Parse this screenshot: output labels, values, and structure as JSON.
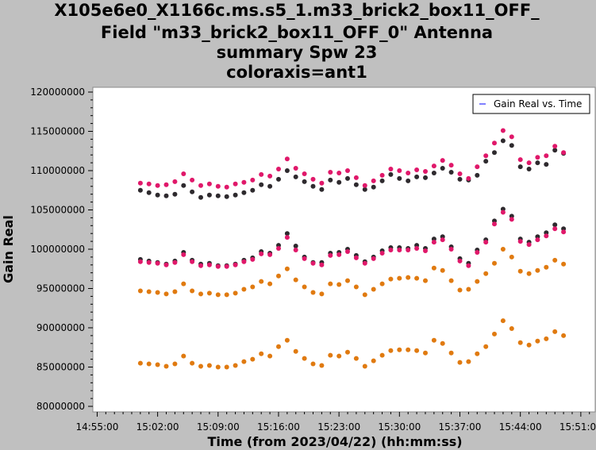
{
  "title_lines": [
    "X105e6e0_X1166c.ms.s5_1.m33_brick2_box11_OFF_",
    "Field \"m33_brick2_box11_OFF_0\" Antenna",
    "summary Spw 23",
    "coloraxis=ant1"
  ],
  "colors": {
    "background": "#c0c0c0",
    "plot_bg": "#ffffff",
    "legend_line": "#0000ff",
    "series": [
      "#2e2a2e",
      "#e0186a",
      "#e07a10"
    ]
  },
  "chart_data": {
    "type": "scatter",
    "xlabel": "Time (from 2023/04/22) (hh:mm:ss)",
    "ylabel": "Gain Real",
    "x_ticks": [
      "14:55:00",
      "15:02:00",
      "15:09:00",
      "15:16:00",
      "15:23:00",
      "15:30:00",
      "15:37:00",
      "15:44:00",
      "15:51:00"
    ],
    "x_range": [
      "14:54:30",
      "15:52:40"
    ],
    "y_ticks": [
      "80000000",
      "85000000",
      "90000000",
      "95000000",
      "100000000",
      "105000000",
      "110000000",
      "115000000",
      "120000000"
    ],
    "y_range": [
      80000000,
      120000000
    ],
    "legend": {
      "label": "Gain Real vs. Time",
      "position": "top-right"
    },
    "grid": false,
    "series": [
      {
        "color": "#2e2a2e",
        "group": "upper",
        "x": [
          "15:00:00",
          "15:01:00",
          "15:02:00",
          "15:03:00",
          "15:04:00",
          "15:05:00",
          "15:06:00",
          "15:07:00",
          "15:08:00",
          "15:09:00",
          "15:10:00",
          "15:11:00",
          "15:12:00",
          "15:13:00",
          "15:14:00",
          "15:15:00",
          "15:16:00",
          "15:17:00",
          "15:18:00",
          "15:19:00",
          "15:20:00",
          "15:21:00",
          "15:22:00",
          "15:23:00",
          "15:24:00",
          "15:25:00",
          "15:26:00",
          "15:27:00",
          "15:28:00",
          "15:29:00",
          "15:30:00",
          "15:31:00",
          "15:32:00",
          "15:33:00",
          "15:34:00",
          "15:35:00",
          "15:36:00",
          "15:37:00",
          "15:38:00",
          "15:39:00",
          "15:40:00",
          "15:41:00",
          "15:42:00",
          "15:43:00",
          "15:44:00",
          "15:45:00",
          "15:46:00",
          "15:47:00",
          "15:48:00",
          "15:49:00"
        ],
        "y": [
          107.5,
          107.2,
          106.9,
          106.8,
          107.0,
          108.1,
          107.3,
          106.6,
          106.9,
          106.8,
          106.7,
          106.9,
          107.2,
          107.5,
          108.2,
          108.0,
          108.9,
          110.0,
          109.2,
          108.6,
          108.0,
          107.6,
          108.8,
          108.5,
          109.0,
          108.2,
          107.6,
          107.9,
          108.7,
          109.5,
          109.0,
          108.7,
          109.2,
          109.1,
          109.7,
          110.3,
          109.8,
          108.9,
          108.8,
          109.4,
          111.2,
          112.3,
          113.8,
          113.2,
          110.5,
          110.2,
          111.0,
          110.8,
          112.6,
          112.2
        ]
      },
      {
        "color": "#e0186a",
        "group": "upper",
        "x": [
          "15:00:00",
          "15:01:00",
          "15:02:00",
          "15:03:00",
          "15:04:00",
          "15:05:00",
          "15:06:00",
          "15:07:00",
          "15:08:00",
          "15:09:00",
          "15:10:00",
          "15:11:00",
          "15:12:00",
          "15:13:00",
          "15:14:00",
          "15:15:00",
          "15:16:00",
          "15:17:00",
          "15:18:00",
          "15:19:00",
          "15:20:00",
          "15:21:00",
          "15:22:00",
          "15:23:00",
          "15:24:00",
          "15:25:00",
          "15:26:00",
          "15:27:00",
          "15:28:00",
          "15:29:00",
          "15:30:00",
          "15:31:00",
          "15:32:00",
          "15:33:00",
          "15:34:00",
          "15:35:00",
          "15:36:00",
          "15:37:00",
          "15:38:00",
          "15:39:00",
          "15:40:00",
          "15:41:00",
          "15:42:00",
          "15:43:00",
          "15:44:00",
          "15:45:00",
          "15:46:00",
          "15:47:00",
          "15:48:00",
          "15:49:00"
        ],
        "y": [
          108.4,
          108.3,
          108.1,
          108.2,
          108.6,
          109.6,
          108.8,
          108.1,
          108.3,
          108.0,
          107.9,
          108.3,
          108.5,
          108.8,
          109.5,
          109.3,
          110.2,
          111.5,
          110.3,
          109.6,
          108.9,
          108.4,
          109.8,
          109.7,
          110.0,
          109.1,
          108.1,
          108.7,
          109.4,
          110.2,
          110.0,
          109.7,
          110.1,
          109.9,
          110.6,
          111.3,
          110.7,
          109.6,
          109.0,
          110.5,
          111.9,
          113.5,
          115.1,
          114.3,
          111.4,
          111.0,
          111.7,
          111.9,
          113.1,
          112.3
        ]
      },
      {
        "color": "#2e2a2e",
        "group": "middle",
        "x": [
          "15:00:00",
          "15:01:00",
          "15:02:00",
          "15:03:00",
          "15:04:00",
          "15:05:00",
          "15:06:00",
          "15:07:00",
          "15:08:00",
          "15:09:00",
          "15:10:00",
          "15:11:00",
          "15:12:00",
          "15:13:00",
          "15:14:00",
          "15:15:00",
          "15:16:00",
          "15:17:00",
          "15:18:00",
          "15:19:00",
          "15:20:00",
          "15:21:00",
          "15:22:00",
          "15:23:00",
          "15:24:00",
          "15:25:00",
          "15:26:00",
          "15:27:00",
          "15:28:00",
          "15:29:00",
          "15:30:00",
          "15:31:00",
          "15:32:00",
          "15:33:00",
          "15:34:00",
          "15:35:00",
          "15:36:00",
          "15:37:00",
          "15:38:00",
          "15:39:00",
          "15:40:00",
          "15:41:00",
          "15:42:00",
          "15:43:00",
          "15:44:00",
          "15:45:00",
          "15:46:00",
          "15:47:00",
          "15:48:00",
          "15:49:00"
        ],
        "y": [
          98.7,
          98.5,
          98.3,
          98.1,
          98.5,
          99.6,
          98.6,
          98.1,
          98.2,
          97.9,
          97.9,
          98.1,
          98.6,
          98.9,
          99.7,
          99.5,
          100.5,
          102.0,
          100.4,
          99.0,
          98.3,
          98.3,
          99.5,
          99.6,
          100.0,
          99.2,
          98.4,
          99.0,
          99.8,
          100.2,
          100.2,
          100.1,
          100.5,
          100.1,
          101.3,
          101.6,
          100.3,
          98.8,
          98.2,
          99.9,
          101.2,
          103.6,
          105.1,
          104.2,
          101.3,
          100.9,
          101.6,
          102.1,
          103.1,
          102.6
        ]
      },
      {
        "color": "#e0186a",
        "group": "middle",
        "x": [
          "15:00:00",
          "15:01:00",
          "15:02:00",
          "15:03:00",
          "15:04:00",
          "15:05:00",
          "15:06:00",
          "15:07:00",
          "15:08:00",
          "15:09:00",
          "15:10:00",
          "15:11:00",
          "15:12:00",
          "15:13:00",
          "15:14:00",
          "15:15:00",
          "15:16:00",
          "15:17:00",
          "15:18:00",
          "15:19:00",
          "15:20:00",
          "15:21:00",
          "15:22:00",
          "15:23:00",
          "15:24:00",
          "15:25:00",
          "15:26:00",
          "15:27:00",
          "15:28:00",
          "15:29:00",
          "15:30:00",
          "15:31:00",
          "15:32:00",
          "15:33:00",
          "15:34:00",
          "15:35:00",
          "15:36:00",
          "15:37:00",
          "15:38:00",
          "15:39:00",
          "15:40:00",
          "15:41:00",
          "15:42:00",
          "15:43:00",
          "15:44:00",
          "15:45:00",
          "15:46:00",
          "15:47:00",
          "15:48:00",
          "15:49:00"
        ],
        "y": [
          98.4,
          98.3,
          98.2,
          98.0,
          98.3,
          99.3,
          98.4,
          97.9,
          98.0,
          97.8,
          97.8,
          98.0,
          98.4,
          98.7,
          99.4,
          99.3,
          100.1,
          101.5,
          99.9,
          98.8,
          98.2,
          98.0,
          99.2,
          99.3,
          99.7,
          98.9,
          98.2,
          98.8,
          99.5,
          99.9,
          99.9,
          99.9,
          100.1,
          99.8,
          100.9,
          101.2,
          100.0,
          98.5,
          97.9,
          99.6,
          100.9,
          103.2,
          104.7,
          103.8,
          101.0,
          100.6,
          101.2,
          101.7,
          102.6,
          102.2
        ]
      },
      {
        "color": "#e07a10",
        "group": "orange-upper",
        "x": [
          "15:00:00",
          "15:01:00",
          "15:02:00",
          "15:03:00",
          "15:04:00",
          "15:05:00",
          "15:06:00",
          "15:07:00",
          "15:08:00",
          "15:09:00",
          "15:10:00",
          "15:11:00",
          "15:12:00",
          "15:13:00",
          "15:14:00",
          "15:15:00",
          "15:16:00",
          "15:17:00",
          "15:18:00",
          "15:19:00",
          "15:20:00",
          "15:21:00",
          "15:22:00",
          "15:23:00",
          "15:24:00",
          "15:25:00",
          "15:26:00",
          "15:27:00",
          "15:28:00",
          "15:29:00",
          "15:30:00",
          "15:31:00",
          "15:32:00",
          "15:33:00",
          "15:34:00",
          "15:35:00",
          "15:36:00",
          "15:37:00",
          "15:38:00",
          "15:39:00",
          "15:40:00",
          "15:41:00",
          "15:42:00",
          "15:43:00",
          "15:44:00",
          "15:45:00",
          "15:46:00",
          "15:47:00",
          "15:48:00",
          "15:49:00"
        ],
        "y": [
          94.7,
          94.6,
          94.5,
          94.3,
          94.6,
          95.6,
          94.7,
          94.3,
          94.4,
          94.2,
          94.2,
          94.4,
          94.9,
          95.2,
          95.9,
          95.6,
          96.6,
          97.5,
          96.1,
          95.2,
          94.5,
          94.3,
          95.6,
          95.5,
          96.0,
          95.2,
          94.2,
          94.9,
          95.6,
          96.2,
          96.3,
          96.4,
          96.3,
          96.0,
          97.6,
          97.3,
          96.0,
          94.8,
          94.9,
          95.9,
          96.9,
          98.2,
          100.0,
          99.0,
          97.2,
          96.9,
          97.3,
          97.7,
          98.6,
          98.1
        ]
      },
      {
        "color": "#e07a10",
        "group": "orange-lower",
        "x": [
          "15:00:00",
          "15:01:00",
          "15:02:00",
          "15:03:00",
          "15:04:00",
          "15:05:00",
          "15:06:00",
          "15:07:00",
          "15:08:00",
          "15:09:00",
          "15:10:00",
          "15:11:00",
          "15:12:00",
          "15:13:00",
          "15:14:00",
          "15:15:00",
          "15:16:00",
          "15:17:00",
          "15:18:00",
          "15:19:00",
          "15:20:00",
          "15:21:00",
          "15:22:00",
          "15:23:00",
          "15:24:00",
          "15:25:00",
          "15:26:00",
          "15:27:00",
          "15:28:00",
          "15:29:00",
          "15:30:00",
          "15:31:00",
          "15:32:00",
          "15:33:00",
          "15:34:00",
          "15:35:00",
          "15:36:00",
          "15:37:00",
          "15:38:00",
          "15:39:00",
          "15:40:00",
          "15:41:00",
          "15:42:00",
          "15:43:00",
          "15:44:00",
          "15:45:00",
          "15:46:00",
          "15:47:00",
          "15:48:00",
          "15:49:00"
        ],
        "y": [
          85.5,
          85.4,
          85.3,
          85.1,
          85.4,
          86.4,
          85.5,
          85.1,
          85.2,
          85.0,
          85.0,
          85.2,
          85.7,
          86.0,
          86.7,
          86.4,
          87.6,
          88.4,
          87.0,
          86.1,
          85.4,
          85.2,
          86.5,
          86.4,
          86.9,
          86.1,
          85.1,
          85.8,
          86.5,
          87.1,
          87.2,
          87.2,
          87.1,
          86.8,
          88.4,
          88.0,
          86.8,
          85.6,
          85.7,
          86.7,
          87.6,
          89.2,
          90.9,
          89.9,
          88.1,
          87.8,
          88.3,
          88.6,
          89.5,
          89.0
        ]
      }
    ]
  }
}
